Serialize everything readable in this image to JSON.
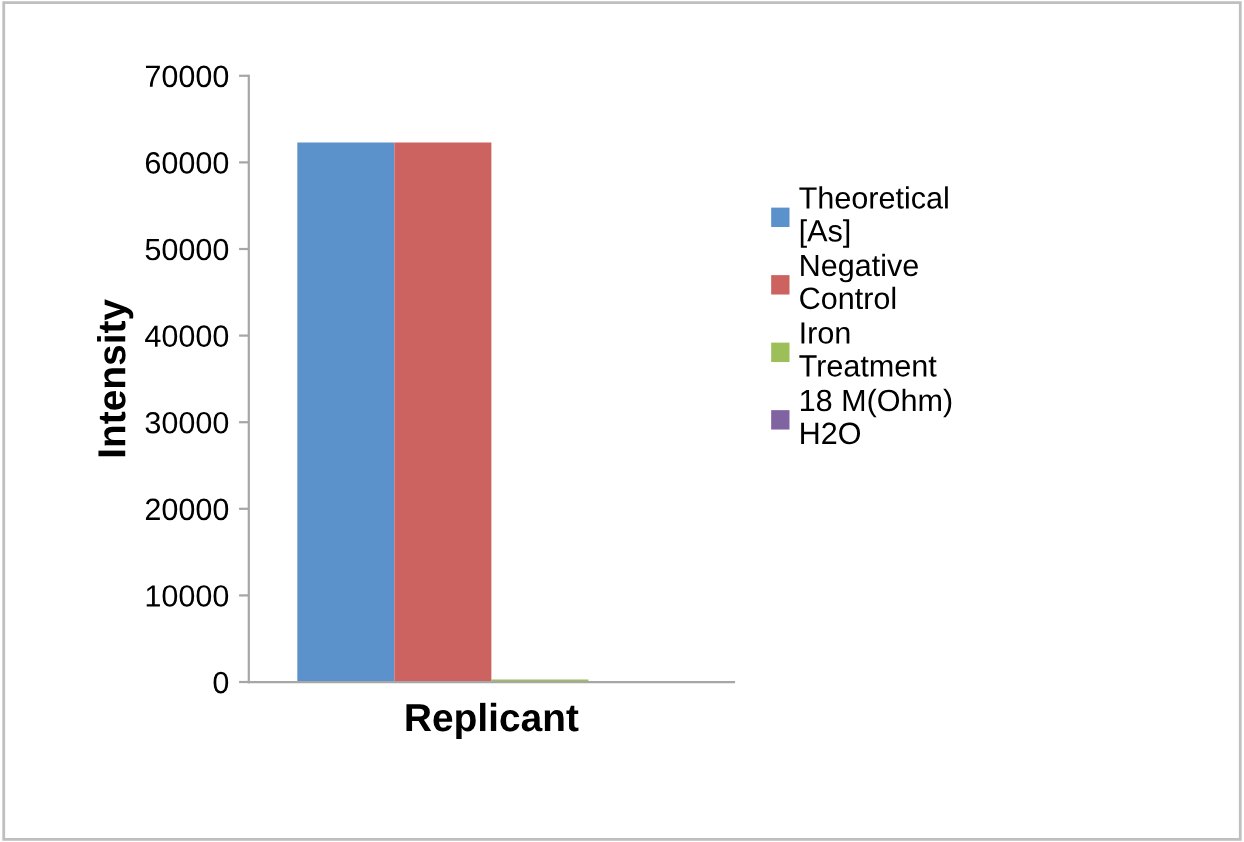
{
  "chart_data": {
    "type": "bar",
    "xlabel": "Replicant",
    "ylabel": "Intensity",
    "categories": [
      null
    ],
    "series": [
      {
        "name": "Theoretical [As]",
        "color": "#5b92cb",
        "values": [
          62300
        ]
      },
      {
        "name": "Negative Control",
        "color": "#cc6360",
        "values": [
          62300
        ]
      },
      {
        "name": "Iron Treatment",
        "color": "#9cbf5a",
        "values": [
          300
        ]
      },
      {
        "name": "18 M(Ohm) H2O",
        "color": "#8064a2",
        "values": [
          100
        ]
      }
    ],
    "ylim": [
      0,
      70000
    ],
    "yticks": [
      0,
      10000,
      20000,
      30000,
      40000,
      50000,
      60000,
      70000
    ],
    "grid": false,
    "legend": "right"
  }
}
